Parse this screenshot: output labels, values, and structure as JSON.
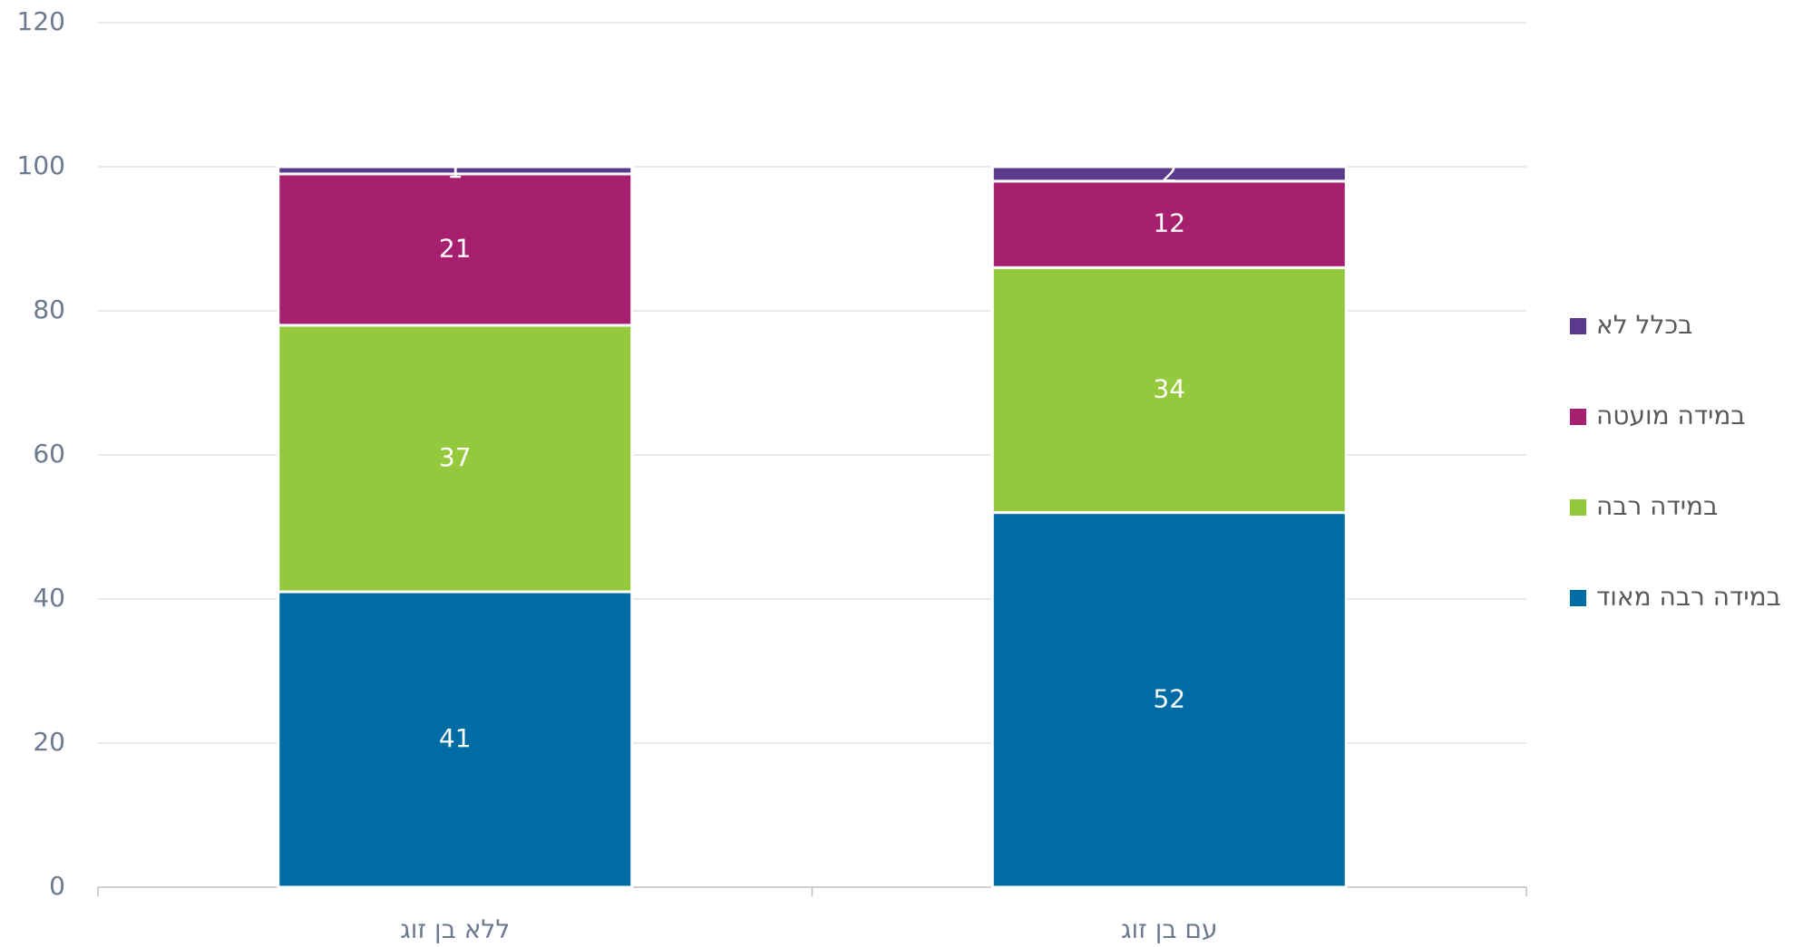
{
  "chart_data": {
    "type": "stacked_bar",
    "categories": [
      "ללא בן זוג",
      "עם בן זוג"
    ],
    "series": [
      {
        "name": "במידה רבה מאוד",
        "color": "#006ca5",
        "values": [
          41,
          52
        ]
      },
      {
        "name": "במידה רבה",
        "color": "#95c93d",
        "values": [
          37,
          34
        ]
      },
      {
        "name": "במידה מועטה",
        "color": "#a71f6f",
        "values": [
          21,
          12
        ]
      },
      {
        "name": "בכלל לא",
        "color": "#5b3a8e",
        "values": [
          1,
          2
        ]
      }
    ],
    "ylim": [
      0,
      120
    ],
    "yticks": [
      0,
      20,
      40,
      60,
      80,
      100,
      120
    ],
    "grid": true,
    "legend": "right"
  }
}
